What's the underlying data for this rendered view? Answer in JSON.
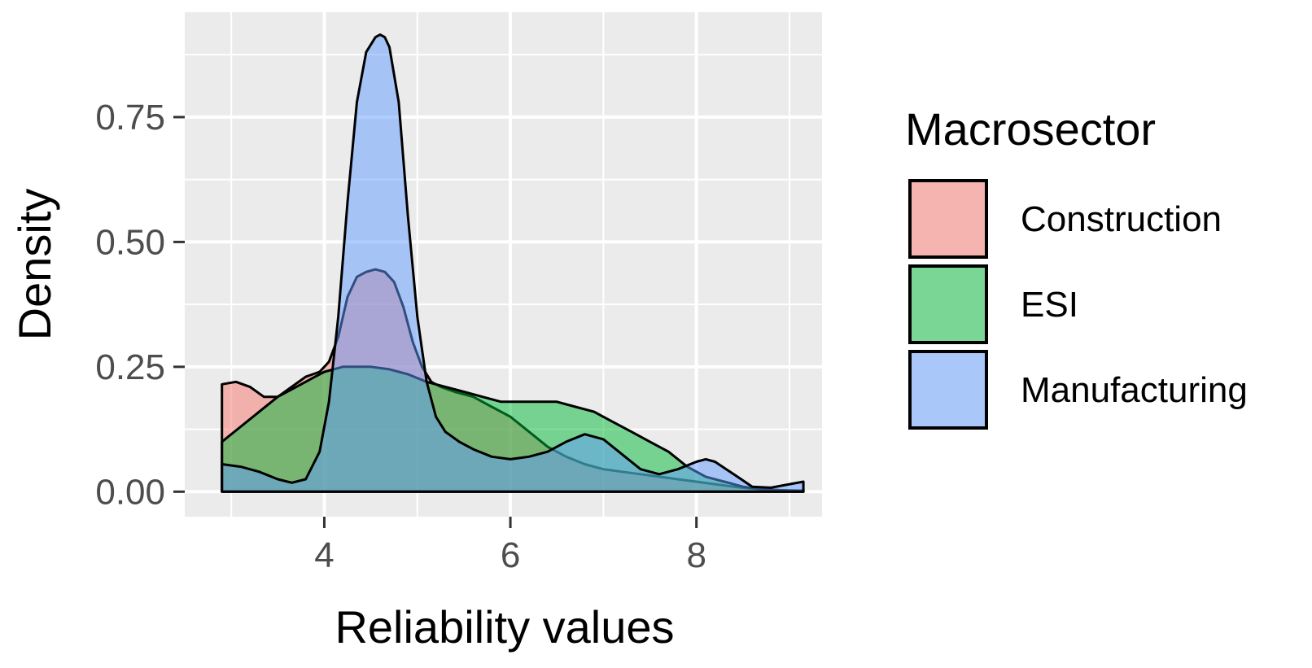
{
  "chart_data": {
    "type": "area",
    "subtype": "density",
    "title": "",
    "xlabel": "Reliability values",
    "ylabel": "Density",
    "xlim": [
      2.5,
      9.35
    ],
    "ylim": [
      -0.05,
      0.96
    ],
    "x_ticks": [
      4,
      6,
      8
    ],
    "x_tick_labels": [
      "4",
      "6",
      "8"
    ],
    "y_ticks": [
      0,
      0.25,
      0.5,
      0.75
    ],
    "y_tick_labels": [
      "0.00",
      "0.25",
      "0.50",
      "0.75"
    ],
    "grid": true,
    "legend": {
      "title": "Macrosector",
      "placement": "right"
    },
    "series": [
      {
        "name": "Construction",
        "color": "#F8766D",
        "x": [
          2.9,
          3.05,
          3.2,
          3.35,
          3.5,
          3.65,
          3.8,
          3.95,
          4.05,
          4.15,
          4.25,
          4.35,
          4.45,
          4.55,
          4.65,
          4.75,
          4.85,
          4.95,
          5.05,
          5.15,
          5.25,
          5.4,
          5.6,
          5.8,
          6.0,
          6.2,
          6.4,
          6.6,
          6.8,
          7.0,
          7.2,
          7.4,
          7.6,
          7.8,
          8.0,
          8.2,
          8.4,
          8.6,
          8.8,
          9.0,
          9.15
        ],
        "values": [
          0.215,
          0.22,
          0.21,
          0.19,
          0.19,
          0.21,
          0.23,
          0.24,
          0.26,
          0.31,
          0.39,
          0.43,
          0.44,
          0.445,
          0.44,
          0.42,
          0.37,
          0.3,
          0.25,
          0.22,
          0.21,
          0.2,
          0.19,
          0.17,
          0.15,
          0.12,
          0.09,
          0.07,
          0.055,
          0.045,
          0.04,
          0.035,
          0.03,
          0.025,
          0.02,
          0.015,
          0.01,
          0.006,
          0.004,
          0.002,
          0.002
        ]
      },
      {
        "name": "ESI",
        "color": "#00BA38",
        "x": [
          2.9,
          3.1,
          3.3,
          3.5,
          3.7,
          3.9,
          4.0,
          4.1,
          4.2,
          4.3,
          4.5,
          4.7,
          4.9,
          5.1,
          5.3,
          5.5,
          5.7,
          5.9,
          6.1,
          6.3,
          6.5,
          6.7,
          6.9,
          7.1,
          7.3,
          7.5,
          7.7,
          7.9,
          8.1,
          8.3,
          8.5,
          8.7,
          8.9,
          9.15
        ],
        "values": [
          0.1,
          0.13,
          0.16,
          0.19,
          0.21,
          0.23,
          0.24,
          0.245,
          0.25,
          0.25,
          0.25,
          0.245,
          0.235,
          0.22,
          0.21,
          0.2,
          0.19,
          0.18,
          0.18,
          0.18,
          0.18,
          0.17,
          0.16,
          0.14,
          0.12,
          0.1,
          0.08,
          0.05,
          0.03,
          0.02,
          0.01,
          0.005,
          0.003,
          0.002
        ]
      },
      {
        "name": "Manufacturing",
        "color": "#619CFF",
        "x": [
          2.9,
          3.1,
          3.3,
          3.5,
          3.65,
          3.8,
          3.95,
          4.05,
          4.15,
          4.25,
          4.35,
          4.45,
          4.55,
          4.6,
          4.65,
          4.7,
          4.8,
          4.9,
          5.0,
          5.1,
          5.2,
          5.3,
          5.45,
          5.6,
          5.8,
          6.0,
          6.2,
          6.4,
          6.6,
          6.8,
          7.0,
          7.2,
          7.4,
          7.6,
          7.8,
          8.0,
          8.1,
          8.2,
          8.4,
          8.6,
          8.8,
          9.0,
          9.15
        ],
        "values": [
          0.055,
          0.05,
          0.04,
          0.025,
          0.018,
          0.025,
          0.08,
          0.18,
          0.35,
          0.58,
          0.78,
          0.88,
          0.91,
          0.915,
          0.91,
          0.89,
          0.78,
          0.55,
          0.35,
          0.22,
          0.15,
          0.12,
          0.1,
          0.085,
          0.07,
          0.065,
          0.07,
          0.08,
          0.1,
          0.115,
          0.105,
          0.075,
          0.045,
          0.035,
          0.045,
          0.06,
          0.065,
          0.06,
          0.035,
          0.01,
          0.008,
          0.015,
          0.02
        ]
      }
    ]
  }
}
